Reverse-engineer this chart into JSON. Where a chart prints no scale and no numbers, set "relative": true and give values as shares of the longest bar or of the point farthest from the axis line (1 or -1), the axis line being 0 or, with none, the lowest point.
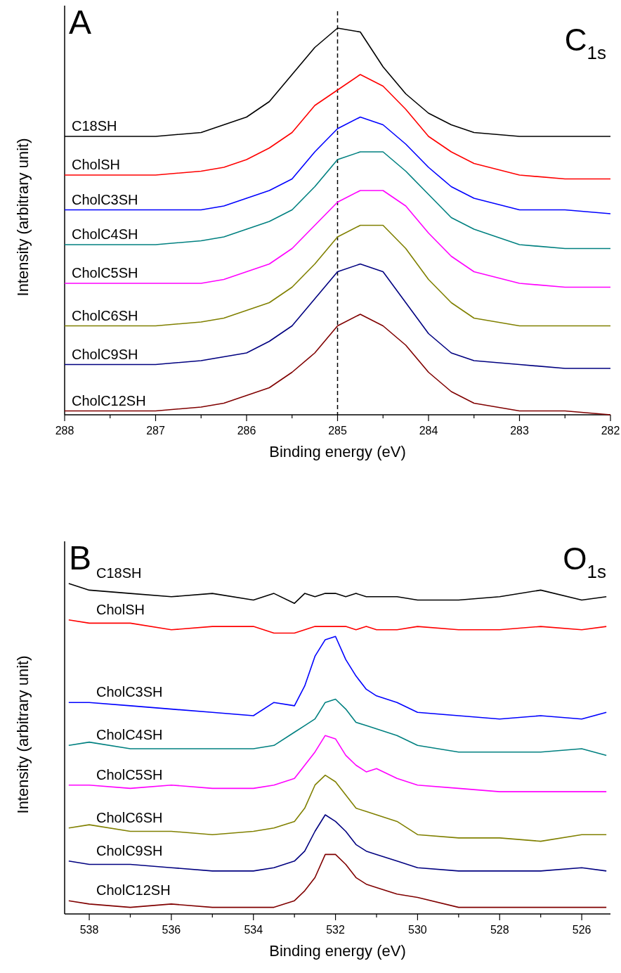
{
  "chart_data": [
    {
      "type": "line",
      "relative": true,
      "xlabel": "Binding energy (eV)",
      "ylabel": "Intensity (arbitrary unit)",
      "annotations": [
        "A",
        "C$_{1s}$"
      ],
      "x": [
        288,
        287.5,
        287,
        286.5,
        286.25,
        286,
        285.75,
        285.5,
        285.25,
        285,
        284.75,
        284.5,
        284.25,
        284,
        283.75,
        283.5,
        283,
        282.5,
        282
      ],
      "xlim": [
        288,
        282
      ],
      "xticks": [
        288,
        {
          "value": 287.5,
          "label": null
        },
        287,
        {
          "value": 286.5,
          "label": null
        },
        286,
        {
          "value": 285.5,
          "label": null
        },
        285,
        {
          "value": 284.5,
          "label": null
        },
        284,
        {
          "value": 283.5,
          "label": null
        },
        283,
        {
          "value": 282.5,
          "label": null
        },
        282
      ],
      "ref_lines": [
        {
          "axis": "x",
          "value": 285,
          "color": "#000000",
          "line_style": "dashed"
        }
      ],
      "series": [
        {
          "name": "C18SH",
          "color": "#000000",
          "values": [
            0.72,
            0.72,
            0.72,
            0.73,
            0.75,
            0.77,
            0.81,
            0.88,
            0.95,
            1.0,
            0.99,
            0.9,
            0.83,
            0.78,
            0.75,
            0.73,
            0.72,
            0.72,
            0.72
          ]
        },
        {
          "name": "CholSH",
          "color": "#ff0000",
          "values": [
            0.62,
            0.62,
            0.62,
            0.63,
            0.64,
            0.66,
            0.69,
            0.73,
            0.8,
            0.84,
            0.88,
            0.85,
            0.79,
            0.72,
            0.68,
            0.65,
            0.62,
            0.61,
            0.61
          ]
        },
        {
          "name": "CholC3SH",
          "color": "#0000ff",
          "values": [
            0.53,
            0.53,
            0.53,
            0.53,
            0.54,
            0.56,
            0.58,
            0.61,
            0.68,
            0.74,
            0.77,
            0.75,
            0.7,
            0.64,
            0.59,
            0.56,
            0.53,
            0.53,
            0.52
          ]
        },
        {
          "name": "CholC4SH",
          "color": "#008080",
          "values": [
            0.44,
            0.44,
            0.44,
            0.45,
            0.46,
            0.48,
            0.5,
            0.53,
            0.59,
            0.66,
            0.68,
            0.68,
            0.63,
            0.57,
            0.51,
            0.48,
            0.44,
            0.43,
            0.43
          ]
        },
        {
          "name": "CholC5SH",
          "color": "#ff00ff",
          "values": [
            0.34,
            0.34,
            0.34,
            0.34,
            0.35,
            0.37,
            0.39,
            0.43,
            0.49,
            0.55,
            0.58,
            0.58,
            0.54,
            0.47,
            0.41,
            0.37,
            0.34,
            0.33,
            0.33
          ]
        },
        {
          "name": "CholC6SH",
          "color": "#808000",
          "values": [
            0.23,
            0.23,
            0.23,
            0.24,
            0.25,
            0.27,
            0.29,
            0.33,
            0.39,
            0.46,
            0.49,
            0.49,
            0.43,
            0.35,
            0.29,
            0.25,
            0.23,
            0.23,
            0.23
          ]
        },
        {
          "name": "CholC9SH",
          "color": "#000080",
          "values": [
            0.13,
            0.13,
            0.13,
            0.14,
            0.15,
            0.16,
            0.19,
            0.23,
            0.3,
            0.37,
            0.39,
            0.37,
            0.29,
            0.21,
            0.16,
            0.14,
            0.13,
            0.12,
            0.12
          ]
        },
        {
          "name": "CholC12SH",
          "color": "#800000",
          "values": [
            0.01,
            0.01,
            0.01,
            0.02,
            0.03,
            0.05,
            0.07,
            0.11,
            0.16,
            0.23,
            0.26,
            0.23,
            0.18,
            0.11,
            0.06,
            0.03,
            0.01,
            0.01,
            0.0
          ]
        }
      ]
    },
    {
      "type": "line",
      "relative": true,
      "xlabel": "Binding energy (eV)",
      "ylabel": "Intensity (arbitrary unit)",
      "annotations": [
        "B",
        "O$_{1s}$"
      ],
      "x": [
        538.5,
        538,
        537,
        536,
        535,
        534,
        533.5,
        533,
        532.75,
        532.5,
        532.25,
        532,
        531.75,
        531.5,
        531.25,
        531,
        530.5,
        530,
        529,
        528,
        527,
        526,
        525.4
      ],
      "xlim": [
        538.6,
        525.3
      ],
      "xticks": [
        538,
        {
          "value": 537,
          "label": null
        },
        536,
        {
          "value": 535,
          "label": null
        },
        534,
        {
          "value": 533,
          "label": null
        },
        532,
        {
          "value": 531,
          "label": null
        },
        530,
        {
          "value": 529,
          "label": null
        },
        528,
        {
          "value": 527,
          "label": null
        },
        526
      ],
      "series": [
        {
          "name": "C18SH",
          "color": "#000000",
          "values": [
            1.0,
            0.98,
            0.97,
            0.96,
            0.97,
            0.95,
            0.97,
            0.94,
            0.97,
            0.96,
            0.97,
            0.97,
            0.96,
            0.97,
            0.96,
            0.96,
            0.96,
            0.95,
            0.95,
            0.96,
            0.98,
            0.95,
            0.96
          ]
        },
        {
          "name": "CholSH",
          "color": "#ff0000",
          "values": [
            0.89,
            0.88,
            0.88,
            0.86,
            0.87,
            0.87,
            0.85,
            0.85,
            0.86,
            0.87,
            0.87,
            0.87,
            0.87,
            0.86,
            0.87,
            0.86,
            0.86,
            0.87,
            0.86,
            0.86,
            0.87,
            0.86,
            0.87
          ]
        },
        {
          "name": "CholC3SH",
          "color": "#0000ff",
          "values": [
            0.64,
            0.64,
            0.63,
            0.62,
            0.61,
            0.6,
            0.64,
            0.63,
            0.69,
            0.78,
            0.83,
            0.84,
            0.77,
            0.72,
            0.68,
            0.66,
            0.64,
            0.61,
            0.6,
            0.59,
            0.6,
            0.59,
            0.61
          ]
        },
        {
          "name": "CholC4SH",
          "color": "#008080",
          "values": [
            0.51,
            0.52,
            0.5,
            0.5,
            0.5,
            0.5,
            0.51,
            0.55,
            0.57,
            0.59,
            0.64,
            0.65,
            0.62,
            0.58,
            0.57,
            0.56,
            0.54,
            0.51,
            0.49,
            0.49,
            0.49,
            0.5,
            0.48
          ]
        },
        {
          "name": "CholC5SH",
          "color": "#ff00ff",
          "values": [
            0.39,
            0.39,
            0.38,
            0.39,
            0.38,
            0.38,
            0.39,
            0.41,
            0.45,
            0.49,
            0.54,
            0.53,
            0.48,
            0.45,
            0.43,
            0.44,
            0.41,
            0.39,
            0.38,
            0.37,
            0.37,
            0.37,
            0.37
          ]
        },
        {
          "name": "CholC6SH",
          "color": "#808000",
          "values": [
            0.26,
            0.27,
            0.25,
            0.25,
            0.24,
            0.25,
            0.26,
            0.28,
            0.32,
            0.39,
            0.42,
            0.4,
            0.36,
            0.32,
            0.31,
            0.3,
            0.28,
            0.24,
            0.23,
            0.23,
            0.22,
            0.24,
            0.24
          ]
        },
        {
          "name": "CholC9SH",
          "color": "#000080",
          "values": [
            0.16,
            0.15,
            0.15,
            0.14,
            0.13,
            0.13,
            0.14,
            0.16,
            0.19,
            0.25,
            0.3,
            0.28,
            0.25,
            0.21,
            0.19,
            0.18,
            0.16,
            0.14,
            0.13,
            0.13,
            0.13,
            0.14,
            0.13
          ]
        },
        {
          "name": "CholC12SH",
          "color": "#800000",
          "values": [
            0.04,
            0.03,
            0.02,
            0.03,
            0.02,
            0.02,
            0.02,
            0.04,
            0.07,
            0.11,
            0.18,
            0.18,
            0.15,
            0.11,
            0.09,
            0.08,
            0.06,
            0.05,
            0.02,
            0.02,
            0.02,
            0.02,
            0.02
          ]
        }
      ]
    }
  ]
}
